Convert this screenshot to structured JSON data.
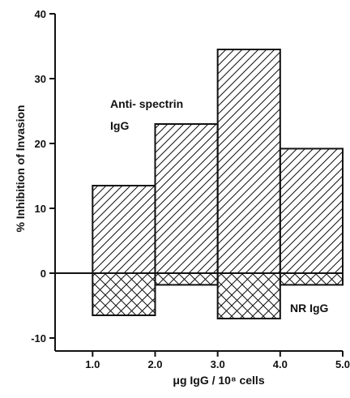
{
  "chart_data": {
    "type": "bar",
    "x_edges": [
      1.0,
      2.0,
      3.0,
      4.0,
      5.0
    ],
    "xlim": [
      0.4,
      5.0
    ],
    "ylim": [
      -12,
      40
    ],
    "xticks": [
      1.0,
      2.0,
      3.0,
      4.0,
      5.0
    ],
    "xtick_labels": [
      "1.0",
      "2.0",
      "3.0",
      "4.0",
      "5.0"
    ],
    "yticks": [
      -10,
      0,
      10,
      20,
      30,
      40
    ],
    "ytick_labels": [
      "-10",
      "0",
      "10",
      "20",
      "30",
      "40"
    ],
    "xlabel": "μg IgG / 10⁸ cells",
    "ylabel": "% Inhibition of Invasion",
    "series": [
      {
        "name": "Anti-spectrin IgG",
        "values": [
          13.5,
          23.0,
          34.5,
          19.2
        ],
        "pattern": "diagonal hatch"
      },
      {
        "name": "NR IgG",
        "values": [
          -6.5,
          -1.8,
          -7.0,
          -1.8
        ],
        "pattern": "cross hatch"
      }
    ],
    "annotations": {
      "anti_line1": "Anti- spectrin",
      "anti_line2": "IgG",
      "nr": "NR IgG"
    },
    "colors": {
      "ink": "#111111",
      "background": "#ffffff"
    },
    "grid": false
  }
}
